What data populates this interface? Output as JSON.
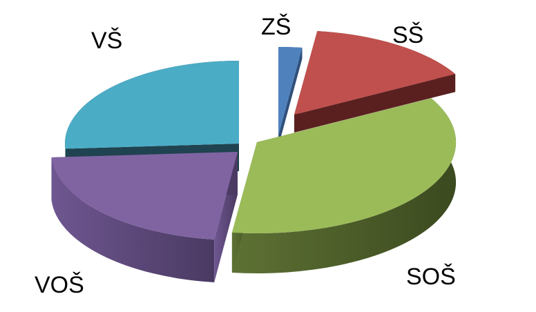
{
  "chart_data": {
    "type": "pie",
    "style": "3d-exploded",
    "categories": [
      "ZŠ",
      "SŠ",
      "SOŠ",
      "VOŠ",
      "VŠ"
    ],
    "values": [
      2,
      15,
      35,
      22,
      26
    ],
    "colors": [
      "#4f81bd",
      "#c0504d",
      "#9bbb59",
      "#8064a2",
      "#4bacc6"
    ],
    "title": "",
    "legend": "none",
    "grid": false
  }
}
